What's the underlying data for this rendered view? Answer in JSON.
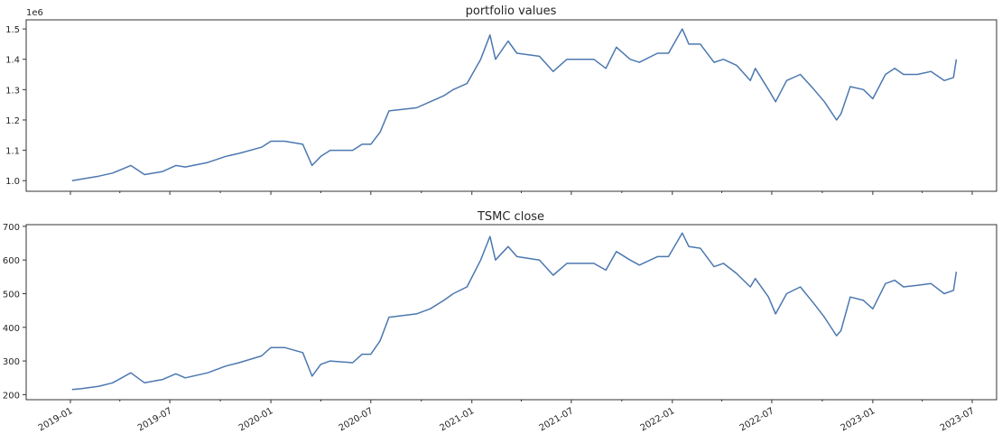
{
  "chart_data": [
    {
      "type": "line",
      "title": "portfolio values",
      "offset_label": "1e6",
      "ylim": [
        0.965,
        1.53
      ],
      "yticks": [
        1.0,
        1.1,
        1.2,
        1.3,
        1.4,
        1.5
      ],
      "ytick_labels": [
        "1.0",
        "1.1",
        "1.2",
        "1.3",
        "1.4",
        "1.5"
      ],
      "color": "#4c78b0",
      "grid": false,
      "x": [
        "2019-01-04",
        "2019-01-21",
        "2019-02-22",
        "2019-03-19",
        "2019-04-21",
        "2019-05-16",
        "2019-06-18",
        "2019-07-12",
        "2019-07-29",
        "2019-09-08",
        "2019-10-11",
        "2019-11-04",
        "2019-12-15",
        "2020-01-01",
        "2020-01-26",
        "2020-02-28",
        "2020-03-16",
        "2020-04-01",
        "2020-04-18",
        "2020-05-29",
        "2020-06-15",
        "2020-07-01",
        "2020-07-18",
        "2020-08-03",
        "2020-09-22",
        "2020-10-17",
        "2020-11-11",
        "2020-11-28",
        "2020-12-23",
        "2021-01-17",
        "2021-02-03",
        "2021-02-13",
        "2021-03-08",
        "2021-03-24",
        "2021-05-04",
        "2021-05-29",
        "2021-06-23",
        "2021-08-11",
        "2021-09-02",
        "2021-09-21",
        "2021-10-16",
        "2021-11-02",
        "2021-12-05",
        "2021-12-25",
        "2022-01-19",
        "2022-01-31",
        "2022-02-21",
        "2022-03-18",
        "2022-04-04",
        "2022-04-28",
        "2022-05-23",
        "2022-06-01",
        "2022-06-25",
        "2022-07-08",
        "2022-07-28",
        "2022-08-22",
        "2022-09-16",
        "2022-10-05",
        "2022-10-27",
        "2022-11-04",
        "2022-11-21",
        "2022-12-15",
        "2023-01-01",
        "2023-01-24",
        "2023-02-10",
        "2023-02-26",
        "2023-03-23",
        "2023-04-17",
        "2023-05-11",
        "2023-05-28",
        "2023-06-02"
      ],
      "values": [
        1.0,
        1.005,
        1.015,
        1.025,
        1.05,
        1.02,
        1.03,
        1.05,
        1.045,
        1.06,
        1.08,
        1.09,
        1.11,
        1.13,
        1.13,
        1.12,
        1.05,
        1.08,
        1.1,
        1.1,
        1.12,
        1.12,
        1.16,
        1.23,
        1.24,
        1.26,
        1.28,
        1.3,
        1.32,
        1.4,
        1.48,
        1.4,
        1.46,
        1.42,
        1.41,
        1.36,
        1.4,
        1.4,
        1.37,
        1.44,
        1.4,
        1.39,
        1.42,
        1.42,
        1.5,
        1.45,
        1.45,
        1.39,
        1.4,
        1.38,
        1.33,
        1.37,
        1.3,
        1.26,
        1.33,
        1.35,
        1.3,
        1.26,
        1.2,
        1.22,
        1.31,
        1.3,
        1.27,
        1.35,
        1.37,
        1.35,
        1.35,
        1.36,
        1.33,
        1.34,
        1.4
      ]
    },
    {
      "type": "line",
      "title": "TSMC close",
      "ylim": [
        185,
        705
      ],
      "yticks": [
        200,
        300,
        400,
        500,
        600,
        700
      ],
      "ytick_labels": [
        "200",
        "300",
        "400",
        "500",
        "600",
        "700"
      ],
      "color": "#4c78b0",
      "grid": false,
      "xtick_labels": [
        "2019-01",
        "2019-07",
        "2020-01",
        "2020-07",
        "2021-01",
        "2021-07",
        "2022-01",
        "2022-07",
        "2023-01",
        "2023-07"
      ],
      "values": [
        215,
        218,
        225,
        235,
        265,
        235,
        245,
        262,
        250,
        265,
        285,
        295,
        315,
        340,
        340,
        325,
        255,
        290,
        300,
        295,
        320,
        320,
        360,
        430,
        440,
        455,
        480,
        500,
        520,
        600,
        670,
        600,
        640,
        610,
        600,
        555,
        590,
        590,
        570,
        625,
        600,
        585,
        610,
        610,
        680,
        640,
        635,
        580,
        590,
        560,
        520,
        545,
        490,
        440,
        500,
        520,
        470,
        430,
        375,
        390,
        490,
        480,
        455,
        530,
        540,
        520,
        525,
        530,
        500,
        510,
        565
      ]
    }
  ]
}
